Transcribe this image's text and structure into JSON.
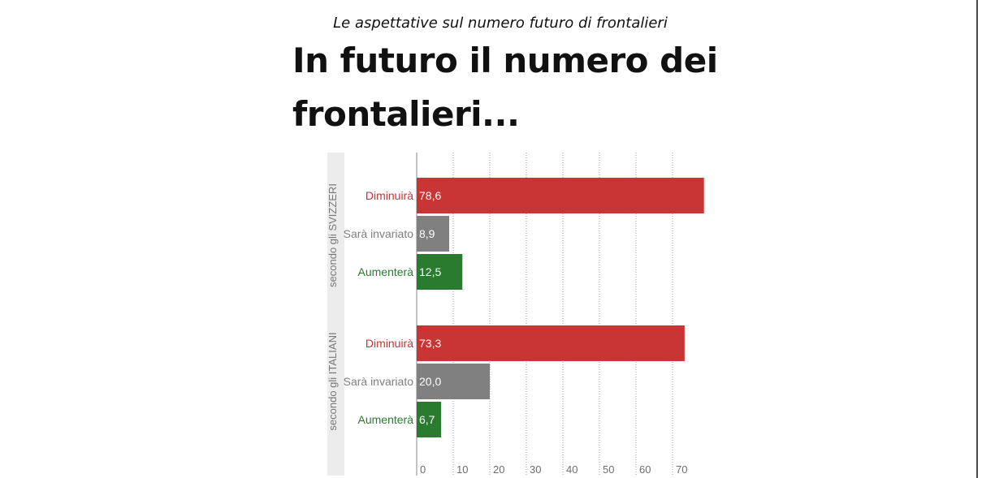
{
  "subtitle": "Le aspettative sul numero futuro di frontalieri",
  "title": "In futuro il numero dei frontalieri...",
  "colors": {
    "Diminuirà": "#c93434",
    "Sarà invariato": "#808080",
    "Aumenterà": "#2a7b30",
    "group_band": "#ececec",
    "grid": "#9a9a9a",
    "text_gray": "#6e6e6e"
  },
  "chart_data": {
    "type": "bar",
    "orientation": "horizontal",
    "groups": [
      {
        "label": "secondo gli SVIZZERI",
        "bars": [
          {
            "category": "Diminuirà",
            "value": 78.6,
            "value_label": "78,6"
          },
          {
            "category": "Sarà invariato",
            "value": 8.9,
            "value_label": "8,9"
          },
          {
            "category": "Aumenterà",
            "value": 12.5,
            "value_label": "12,5"
          }
        ]
      },
      {
        "label": "secondo gli ITALIANI",
        "bars": [
          {
            "category": "Diminuirà",
            "value": 73.3,
            "value_label": "73,3"
          },
          {
            "category": "Sarà invariato",
            "value": 20.0,
            "value_label": "20,0"
          },
          {
            "category": "Aumenterà",
            "value": 6.7,
            "value_label": "6,7"
          }
        ]
      }
    ],
    "xticks": [
      0,
      10,
      20,
      30,
      40,
      50,
      60,
      70
    ],
    "xlim": [
      0,
      80
    ],
    "grid": true
  }
}
